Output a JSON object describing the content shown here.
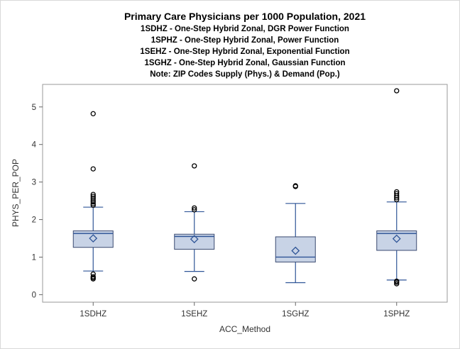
{
  "titles": {
    "main": "Primary Care Physicians per 1000 Population, 2021",
    "lines": [
      "1SDHZ - One-Step Hybrid Zonal, DGR Power Function",
      "1SPHZ - One-Step Hybrid Zonal, Power Function",
      "1SEHZ - One-Step Hybrid Zonal, Exponential Function",
      "1SGHZ - One-Step Hybrid Zonal, Gaussian Function",
      "Note: ZIP Codes Supply (Phys.) & Demand (Pop.)"
    ]
  },
  "chart_data": {
    "type": "box",
    "xlabel": "ACC_Method",
    "ylabel": "PHYS_PER_POP",
    "ylim": [
      -0.2,
      5.6
    ],
    "yticks": [
      0,
      1,
      2,
      3,
      4,
      5
    ],
    "categories": [
      "1SDHZ",
      "1SEHZ",
      "1SGHZ",
      "1SPHZ"
    ],
    "boxes": [
      {
        "category": "1SDHZ",
        "whisker_low": 0.63,
        "q1": 1.26,
        "median": 1.63,
        "q3": 1.7,
        "whisker_high": 2.33,
        "mean": 1.5,
        "outliers": [
          0.42,
          0.45,
          0.48,
          0.55,
          2.38,
          2.42,
          2.47,
          2.52,
          2.57,
          2.62,
          2.67,
          3.35,
          4.82
        ]
      },
      {
        "category": "1SEHZ",
        "whisker_low": 0.62,
        "q1": 1.21,
        "median": 1.55,
        "q3": 1.61,
        "whisker_high": 2.21,
        "mean": 1.48,
        "outliers": [
          0.42,
          2.26,
          2.31,
          3.43
        ]
      },
      {
        "category": "1SGHZ",
        "whisker_low": 0.32,
        "q1": 0.87,
        "median": 1.0,
        "q3": 1.54,
        "whisker_high": 2.43,
        "mean": 1.17,
        "outliers": [
          2.88,
          2.9
        ]
      },
      {
        "category": "1SPHZ",
        "whisker_low": 0.39,
        "q1": 1.18,
        "median": 1.63,
        "q3": 1.7,
        "whisker_high": 2.47,
        "mean": 1.49,
        "outliers": [
          0.29,
          0.33,
          0.36,
          2.53,
          2.58,
          2.63,
          2.69,
          2.74,
          5.43
        ]
      }
    ],
    "colors": {
      "box_fill": "#c8d3e6",
      "box_stroke": "#3a4a70",
      "median": "#2f5597",
      "mean": "#2f5597",
      "whisker": "#2f5597",
      "outlier": "#000000",
      "plot_border": "#9a9a9a"
    }
  }
}
